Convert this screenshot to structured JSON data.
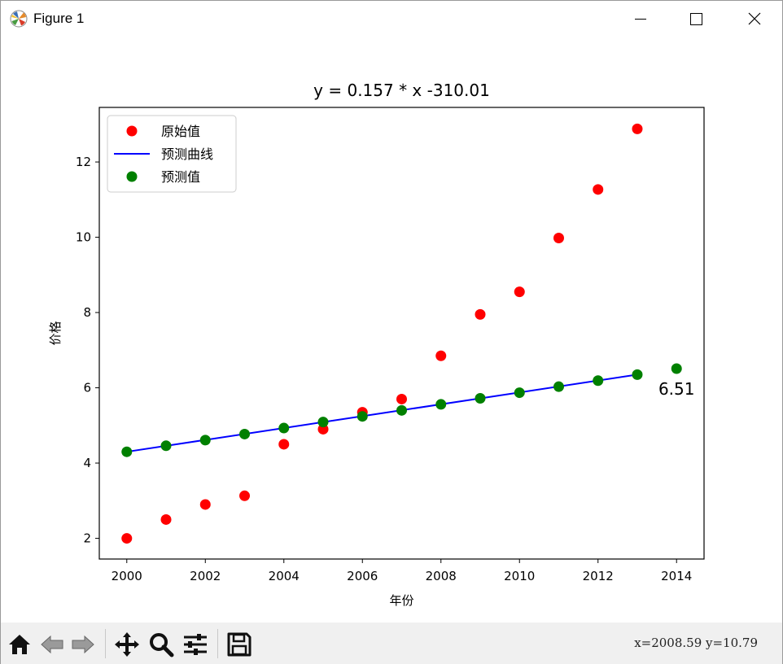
{
  "window": {
    "title": "Figure 1",
    "icon": "matplotlib-icon",
    "controls": [
      "minimize-icon",
      "maximize-icon",
      "close-icon"
    ]
  },
  "toolbar": {
    "buttons": [
      "home-icon",
      "back-icon",
      "forward-icon",
      "pan-icon",
      "zoom-icon",
      "configure-subplots-icon",
      "save-icon"
    ],
    "coords": "x=2008.59 y=10.79"
  },
  "chart_data": {
    "type": "scatter",
    "title": "y = 0.157 * x -310.01",
    "xlabel": "年份",
    "ylabel": "价格",
    "xlim": [
      1999.3,
      2014.7
    ],
    "ylim": [
      1.45,
      13.45
    ],
    "xticks": [
      2000,
      2002,
      2004,
      2006,
      2008,
      2010,
      2012,
      2014
    ],
    "yticks": [
      2,
      4,
      6,
      8,
      10,
      12
    ],
    "legend_position": "upper-left",
    "series": [
      {
        "name": "原始值",
        "kind": "scatter",
        "color": "#ff0000",
        "x": [
          2000,
          2001,
          2002,
          2003,
          2004,
          2005,
          2006,
          2007,
          2008,
          2009,
          2010,
          2011,
          2012,
          2013
        ],
        "y": [
          2.0,
          2.5,
          2.9,
          3.13,
          4.5,
          4.9,
          5.35,
          5.7,
          6.85,
          7.95,
          8.55,
          9.98,
          11.27,
          12.88
        ]
      },
      {
        "name": "预测曲线",
        "kind": "line",
        "color": "#0000ff",
        "x": [
          2000,
          2013
        ],
        "y": [
          4.3,
          6.35
        ]
      },
      {
        "name": "预测值",
        "kind": "scatter",
        "color": "#008000",
        "x": [
          2000,
          2001,
          2002,
          2003,
          2004,
          2005,
          2006,
          2007,
          2008,
          2009,
          2010,
          2011,
          2012,
          2013,
          2014
        ],
        "y": [
          4.3,
          4.46,
          4.61,
          4.77,
          4.93,
          5.09,
          5.24,
          5.4,
          5.56,
          5.72,
          5.87,
          6.03,
          6.19,
          6.35,
          6.51
        ]
      }
    ],
    "annotation": {
      "text": "6.51",
      "x": 2014,
      "y": 6.51
    }
  }
}
